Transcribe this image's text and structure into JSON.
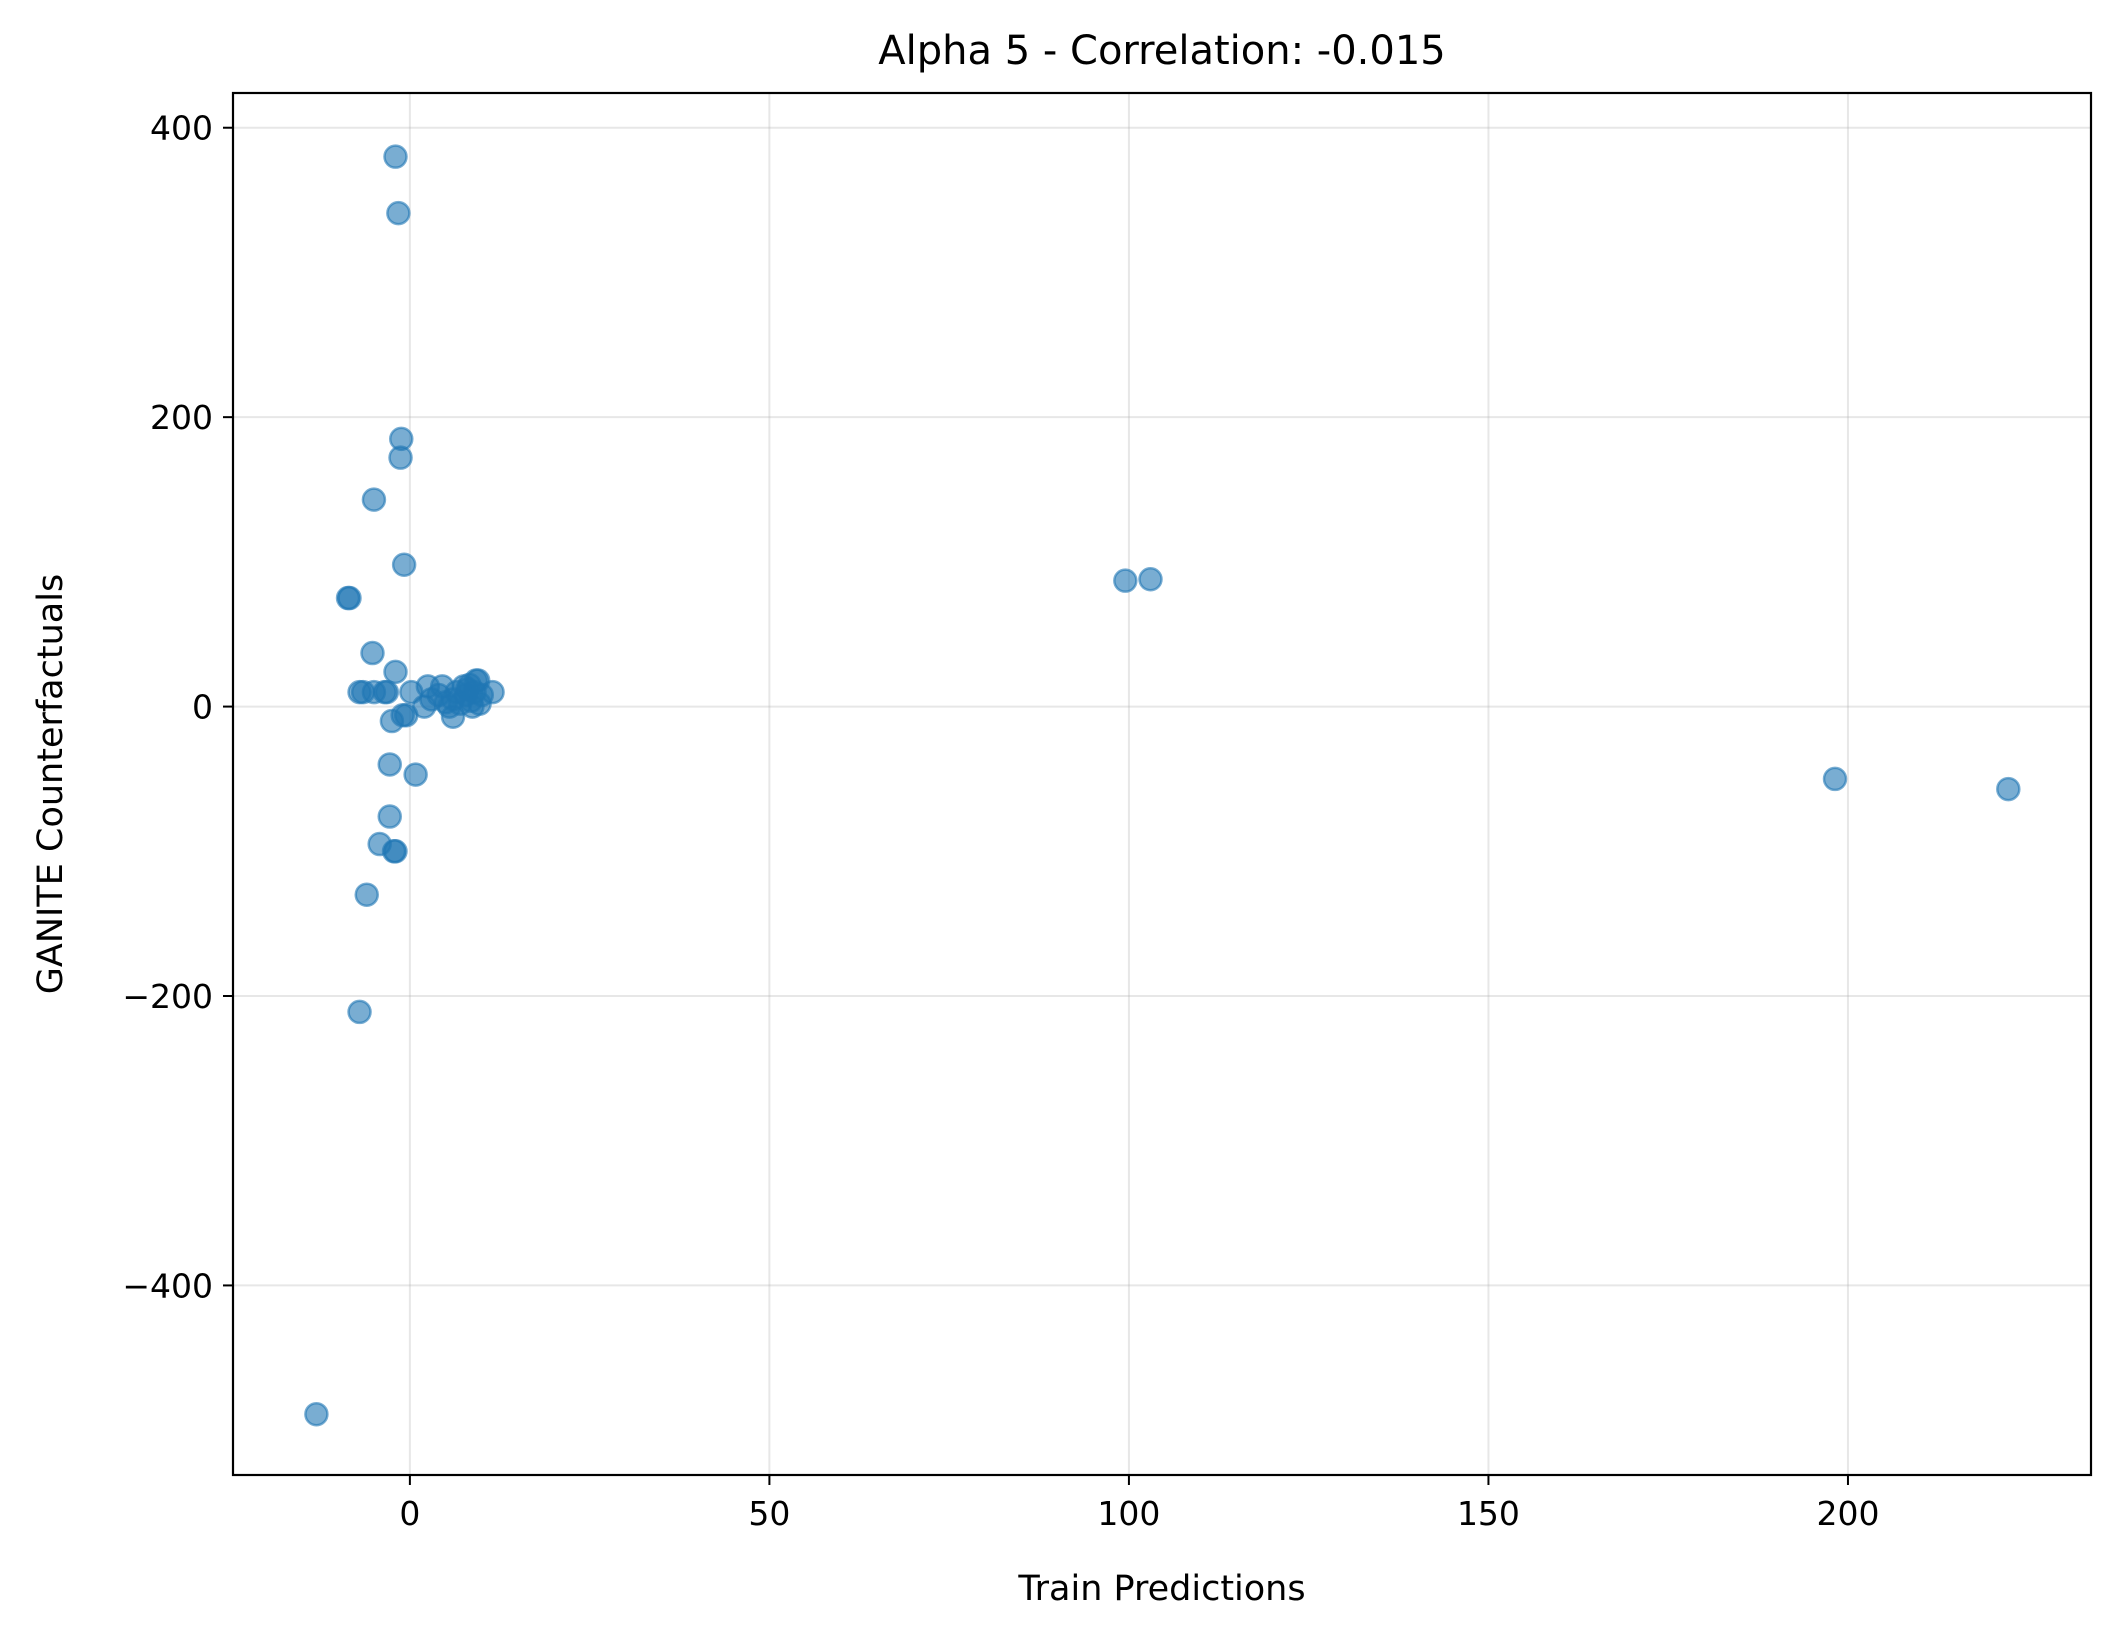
{
  "chart_data": {
    "type": "scatter",
    "title": "Alpha 5 - Correlation: -0.015",
    "xlabel": "Train Predictions",
    "ylabel": "GANITE Counterfactuals",
    "xlim": [
      -24.6,
      233.8
    ],
    "ylim": [
      -531,
      424
    ],
    "xticks": [
      0,
      50,
      100,
      150,
      200
    ],
    "yticks": [
      -400,
      -200,
      0,
      200,
      400
    ],
    "x_tick_labels": [
      "0",
      "50",
      "100",
      "150",
      "200"
    ],
    "y_tick_labels": [
      "−400",
      "−200",
      "0",
      "200",
      "400"
    ],
    "grid": true,
    "legend": "none",
    "marker_color": "#1f77b4",
    "marker_alpha": 0.6,
    "series": [
      {
        "points": [
          [
            -2,
            380
          ],
          [
            -1.6,
            341
          ],
          [
            -1.2,
            185
          ],
          [
            -1.3,
            172
          ],
          [
            -5,
            143
          ],
          [
            -0.8,
            98
          ],
          [
            -8.6,
            75
          ],
          [
            -8.4,
            75
          ],
          [
            -5.2,
            37
          ],
          [
            -2,
            24
          ],
          [
            -7,
            10
          ],
          [
            -6.5,
            10
          ],
          [
            -5,
            10
          ],
          [
            -3.5,
            10
          ],
          [
            -3.2,
            10
          ],
          [
            -2.5,
            -10
          ],
          [
            -1,
            -6
          ],
          [
            -0.5,
            -6
          ],
          [
            0.2,
            10
          ],
          [
            2,
            0
          ],
          [
            2.5,
            14
          ],
          [
            3,
            5
          ],
          [
            4,
            8
          ],
          [
            4.5,
            14
          ],
          [
            5,
            3
          ],
          [
            5.5,
            0
          ],
          [
            6,
            5
          ],
          [
            6,
            -7
          ],
          [
            6.5,
            10
          ],
          [
            7,
            2
          ],
          [
            7.5,
            14
          ],
          [
            7.8,
            8
          ],
          [
            8,
            12
          ],
          [
            8.3,
            15
          ],
          [
            8.5,
            4
          ],
          [
            8.7,
            0
          ],
          [
            9,
            10
          ],
          [
            9.2,
            18
          ],
          [
            9.5,
            18
          ],
          [
            9.7,
            2
          ],
          [
            10,
            8
          ],
          [
            11.5,
            10
          ],
          [
            -2.8,
            -40
          ],
          [
            0.8,
            -47
          ],
          [
            -2.8,
            -76
          ],
          [
            -4.2,
            -95
          ],
          [
            -2.2,
            -100
          ],
          [
            -2,
            -100
          ],
          [
            -6,
            -130
          ],
          [
            -7,
            -211
          ],
          [
            -13,
            -489
          ],
          [
            99.5,
            87
          ],
          [
            103,
            88
          ],
          [
            198.2,
            -50
          ],
          [
            222.3,
            -57
          ]
        ]
      }
    ]
  }
}
